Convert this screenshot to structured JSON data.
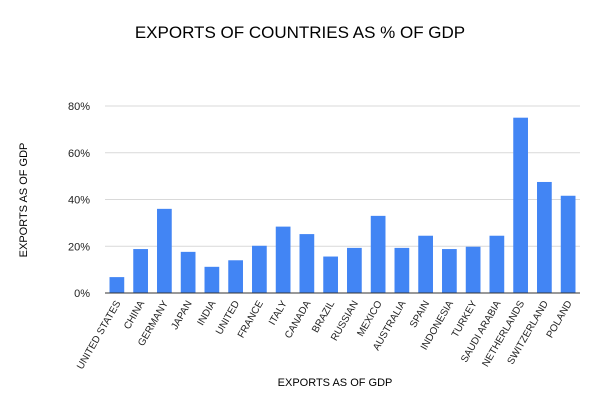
{
  "chart_data": {
    "type": "bar",
    "title": "EXPORTS OF COUNTRIES AS % OF GDP",
    "xlabel": "EXPORTS AS OF GDP",
    "ylabel": "EXPORTS AS OF GDP",
    "ylim": [
      0,
      80
    ],
    "yticks": [
      0,
      20,
      40,
      60,
      80
    ],
    "ytick_labels": [
      "0%",
      "20%",
      "40%",
      "60%",
      "80%"
    ],
    "grid": true,
    "legend": "none",
    "colors": {
      "bar": "#4285F4",
      "grid": "#d9d9d9",
      "axis": "#333333"
    },
    "categories": [
      "UNITED STATES",
      "CHINA",
      "GERMANY",
      "JAPAN",
      "INDIA",
      "UNITED",
      "FRANCE",
      "ITALY",
      "CANADA",
      "BRAZIL",
      "RUSSIAN",
      "MEXICO",
      "AUSTRALIA",
      "SPAIN",
      "INDONESIA",
      "TURKEY",
      "SAUDI ARABIA",
      "NETHERLANDS",
      "SWITZERLAND",
      "POLAND"
    ],
    "values": [
      6.8,
      18.8,
      36.0,
      17.6,
      11.2,
      14.0,
      20.2,
      28.4,
      25.2,
      15.6,
      19.3,
      33.0,
      19.3,
      24.5,
      18.8,
      19.8,
      24.5,
      75.0,
      47.5,
      41.6
    ]
  }
}
